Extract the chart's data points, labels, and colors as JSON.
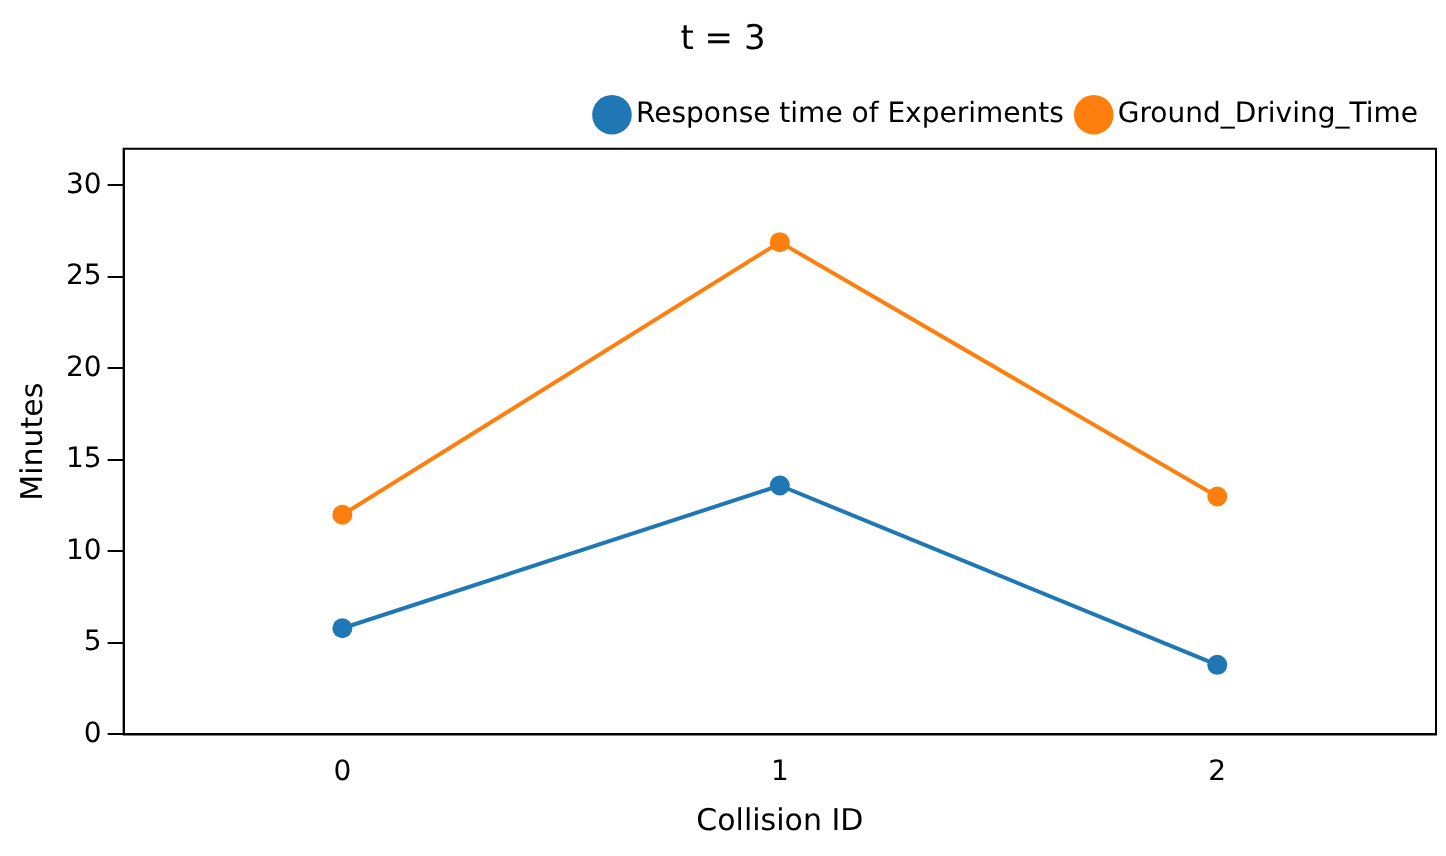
{
  "chart_data": {
    "type": "line",
    "title": "t = 3",
    "xlabel": "Collision ID",
    "ylabel": "Minutes",
    "x": [
      0,
      1,
      2
    ],
    "series": [
      {
        "name": "Response time of Experiments",
        "color": "#1f77b4",
        "values": [
          5.8,
          13.6,
          3.8
        ]
      },
      {
        "name": "Ground_Driving_Time",
        "color": "#ff7f0e",
        "values": [
          12,
          26.9,
          13
        ]
      }
    ],
    "xlim": [
      -0.5,
      2.5
    ],
    "xticks": [
      0,
      1,
      2
    ],
    "ylim": [
      0,
      32
    ],
    "yticks": [
      0,
      5,
      10,
      15,
      20,
      25,
      30
    ],
    "grid": false,
    "legend": "top right",
    "marker": "circle",
    "line_style": "solid"
  }
}
